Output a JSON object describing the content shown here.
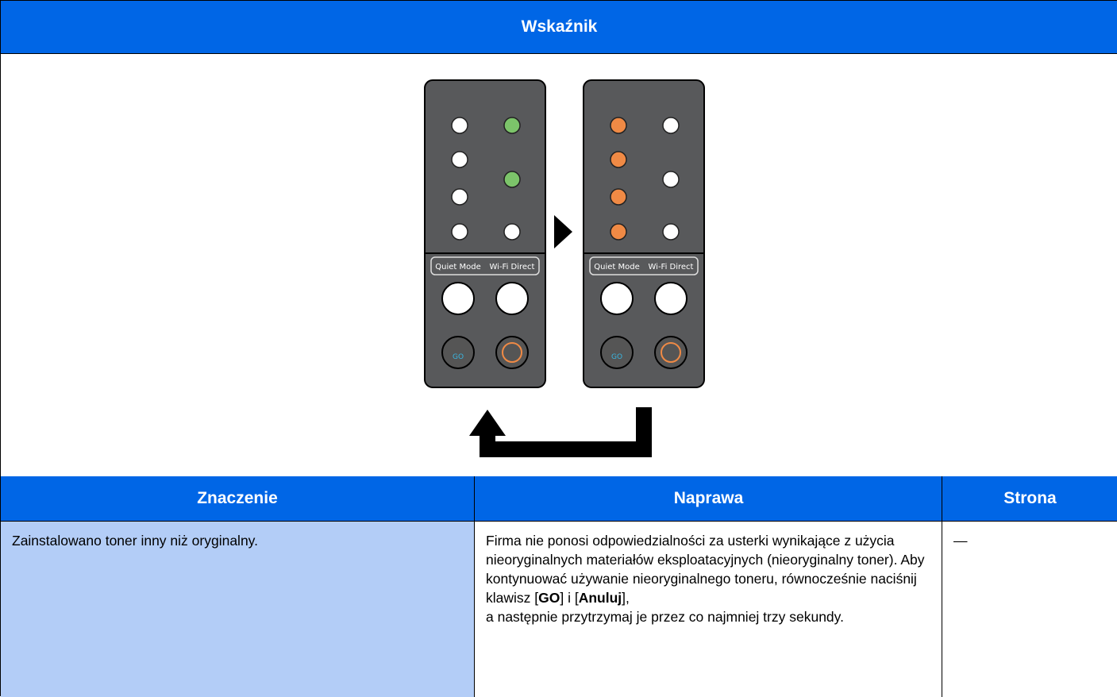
{
  "header": {
    "title": "Wskaźnik"
  },
  "panels": [
    {
      "labels": [
        "Quiet Mode",
        "Wi-Fi Direct"
      ],
      "go": "GO"
    },
    {
      "labels": [
        "Quiet Mode",
        "Wi-Fi Direct"
      ],
      "go": "GO"
    }
  ],
  "table": {
    "columns": [
      "Znaczenie",
      "Naprawa",
      "Strona"
    ],
    "rows": [
      [
        "Zainstalowano toner inny niż oryginalny.",
        [
          "Firma nie ponosi odpowiedzialności za usterki wynikające z użycia nieoryginalnych materiałów eksploatacyjnych (nieoryginalny toner). Aby kontynuować używanie nieoryginalnego toneru, równocześnie naciśnij klawisz [",
          "GO",
          "] i [",
          "Anuluj",
          "],",
          "a następnie przytrzymaj je przez co najmniej trzy sekundy."
        ],
        "—"
      ]
    ]
  }
}
